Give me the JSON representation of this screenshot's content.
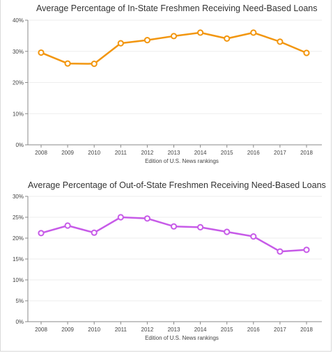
{
  "chart_data": [
    {
      "type": "line",
      "title": "Average Percentage of In-State Freshmen Receiving Need-Based Loans",
      "xlabel": "Edition of U.S. News rankings",
      "ylabel": "",
      "x": [
        "2008",
        "2009",
        "2010",
        "2011",
        "2012",
        "2013",
        "2014",
        "2015",
        "2016",
        "2017",
        "2018"
      ],
      "series": [
        {
          "values": [
            29.6,
            26.1,
            26.0,
            32.6,
            33.6,
            34.9,
            36.0,
            34.1,
            36.0,
            33.1,
            29.5
          ]
        }
      ],
      "ylim": [
        0,
        40
      ],
      "yticks": [
        0,
        10,
        20,
        30,
        40
      ],
      "ytick_labels": [
        "0%",
        "10%",
        "20%",
        "30%",
        "40%"
      ],
      "color": "#f2960f",
      "grid": true
    },
    {
      "type": "line",
      "title": "Average Percentage of Out-of-State Freshmen Receiving Need-Based Loans",
      "xlabel": "Edition of U.S. News rankings",
      "ylabel": "",
      "x": [
        "2008",
        "2009",
        "2010",
        "2011",
        "2012",
        "2013",
        "2014",
        "2015",
        "2016",
        "2017",
        "2018"
      ],
      "series": [
        {
          "values": [
            21.2,
            23.0,
            21.3,
            25.0,
            24.7,
            22.8,
            22.6,
            21.5,
            20.4,
            16.8,
            17.2
          ]
        }
      ],
      "ylim": [
        0,
        30
      ],
      "yticks": [
        0,
        5,
        10,
        15,
        20,
        25,
        30
      ],
      "ytick_labels": [
        "0%",
        "5%",
        "10%",
        "15%",
        "20%",
        "25%",
        "30%"
      ],
      "color": "#c75be8",
      "grid": true
    }
  ]
}
